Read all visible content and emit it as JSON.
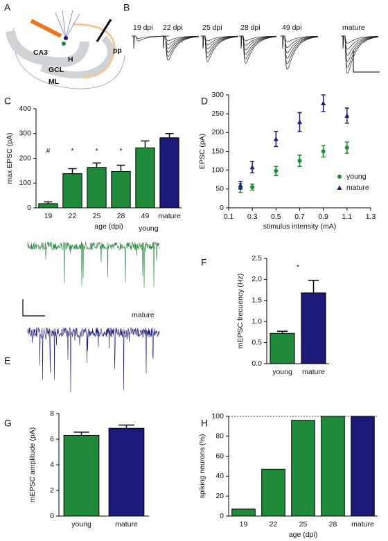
{
  "schematic": {
    "panel": "A",
    "labels": [
      "CA3",
      "H",
      "GCL",
      "ML",
      "pp"
    ]
  },
  "traces_panel": {
    "panel": "B",
    "labels": [
      "19 dpi",
      "22 dpi",
      "25 dpi",
      "28 dpi",
      "49 dpi",
      "mature"
    ]
  },
  "mini_traces": {
    "panel": "E",
    "labels": [
      "young",
      "mature"
    ]
  },
  "chart_data": [
    {
      "panel": "C",
      "type": "bar",
      "categories": [
        "19",
        "22",
        "25",
        "28",
        "49",
        "mature"
      ],
      "values": [
        17,
        138,
        163,
        147,
        242,
        283
      ],
      "errors": [
        7,
        20,
        18,
        25,
        28,
        17
      ],
      "colors": [
        "#1f8a3a",
        "#1f8a3a",
        "#1f8a3a",
        "#1f8a3a",
        "#1f8a3a",
        "#1c1a78"
      ],
      "bar_annotations": [
        "#",
        "*",
        "*",
        "*",
        null,
        null
      ],
      "ylabel": "max EPSC (pA)",
      "xlabel": "age (dpi)",
      "ylim": [
        0,
        400
      ],
      "yticks": [
        0,
        100,
        200,
        300,
        400
      ]
    },
    {
      "panel": "D",
      "type": "scatter",
      "x": [
        0.2,
        0.3,
        0.5,
        0.7,
        0.9,
        1.1
      ],
      "series": [
        {
          "name": "young",
          "color": "#1f8a3a",
          "marker": "circle",
          "values": [
            53,
            55,
            98,
            125,
            150,
            160
          ],
          "errors": [
            12,
            8,
            12,
            15,
            15,
            15
          ]
        },
        {
          "name": "mature",
          "color": "#1c1a78",
          "marker": "triangle",
          "values": [
            60,
            108,
            183,
            228,
            278,
            245
          ],
          "errors": [
            10,
            15,
            20,
            25,
            22,
            20
          ]
        }
      ],
      "xlim": [
        0.1,
        1.3
      ],
      "xticks": [
        0.1,
        0.3,
        0.5,
        0.7,
        0.9,
        1.1,
        1.3
      ],
      "ylim": [
        0,
        300
      ],
      "yticks": [
        0,
        50,
        100,
        150,
        200,
        250,
        300
      ],
      "ylabel": "EPSC (pA)",
      "xlabel": "stimulus intensity (mA)",
      "legend": "lower right"
    },
    {
      "panel": "F",
      "type": "bar",
      "categories": [
        "young",
        "mature"
      ],
      "values": [
        0.72,
        1.68
      ],
      "errors": [
        0.05,
        0.3
      ],
      "colors": [
        "#1f8a3a",
        "#1c1a78"
      ],
      "annotation": "*",
      "ylabel": "mEPSC frecuency (Hz)",
      "ylim": [
        0,
        2.5
      ],
      "yticks": [
        {
          "value": 0,
          "label": "0.0"
        },
        0.5,
        {
          "value": 1,
          "label": "1.0"
        },
        1.5,
        {
          "value": 2,
          "label": "2.0"
        },
        2.5
      ]
    },
    {
      "panel": "G",
      "type": "bar",
      "categories": [
        "young",
        "mature"
      ],
      "values": [
        6.3,
        6.85
      ],
      "errors": [
        0.25,
        0.25
      ],
      "colors": [
        "#1f8a3a",
        "#1c1a78"
      ],
      "ylabel": "mEPSC amplitude (pA)",
      "ylim": [
        0,
        8
      ],
      "yticks": [
        0,
        2,
        4,
        6,
        8
      ]
    },
    {
      "panel": "H",
      "type": "bar",
      "categories": [
        "19",
        "22",
        "25",
        "28",
        "mature"
      ],
      "values": [
        7,
        47,
        96,
        100,
        100
      ],
      "colors": [
        "#1f8a3a",
        "#1f8a3a",
        "#1f8a3a",
        "#1f8a3a",
        "#1c1a78"
      ],
      "reference_line": 100,
      "ylabel": "spiking neurons (%)",
      "xlabel": "age (dpi)",
      "ylim": [
        0,
        100
      ],
      "yticks": [
        0,
        20,
        40,
        60,
        80,
        100
      ]
    }
  ]
}
